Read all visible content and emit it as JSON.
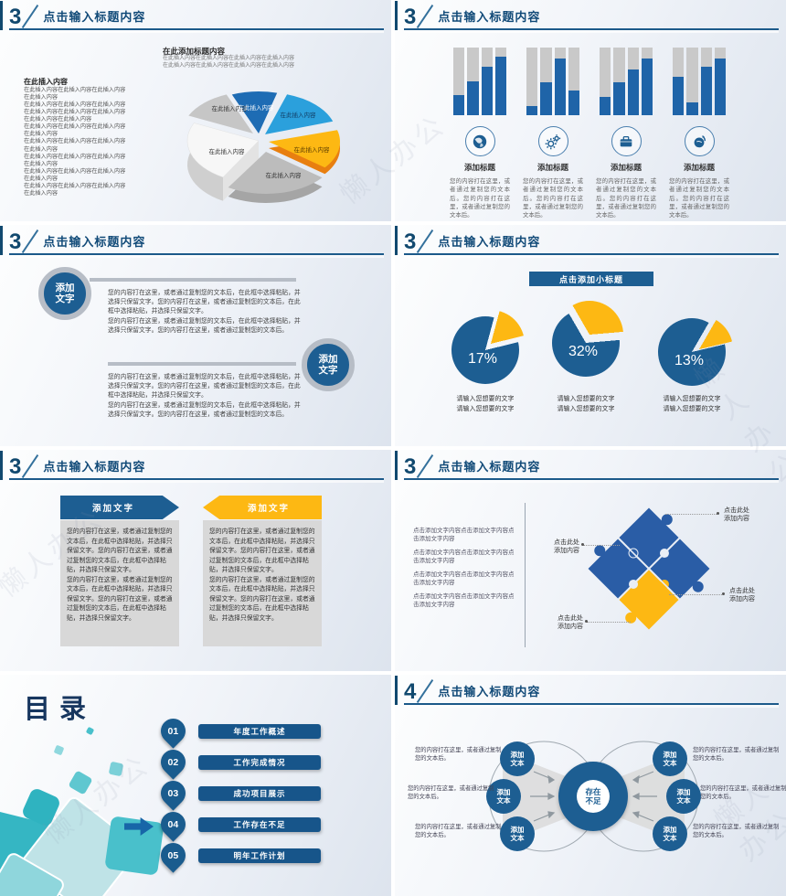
{
  "watermark": "懒人办公",
  "colors": {
    "header_blue": "#114a78",
    "line_blue": "#1c5a8a",
    "accent_blue": "#1d5e92",
    "bar_blue": "#1f64a8",
    "bar_gray": "#c9c9c9",
    "yellow": "#fdb813",
    "orange": "#e87f10",
    "light_blue": "#2ba0dc",
    "teal": "#35b6c3",
    "card_gray": "#d8d8d8"
  },
  "slides": {
    "s1": {
      "number": "3",
      "title": "点击输入标题内容",
      "left_heading": "在此插入内容",
      "left_body": "在此插入内容在此插入内容在此插入内容\n在此插入内容\n在此插入内容在此插入内容在此插入内容\n在此插入内容在此插入内容在此插入内容\n在此插入内容在此插入内容\n在此插入内容在此插入内容在此插入内容\n在此插入内容\n在此插入内容在此插入内容在此插入内容\n在此插入内容\n在此插入内容在此插入内容在此插入内容\n在此插入内容\n在此插入内容在此插入内容在此插入内容\n在此插入内容\n在此插入内容在此插入内容在此插入内容\n在此插入内容",
      "chart_title": "在此添加标题内容",
      "chart_sub": "在此插入内容在此插入内容在此插入内容在此插入内容\n在此插入内容在此插入内容在此插入内容在此插入内容",
      "pie_labels": [
        "在此插入内容",
        "在此插入内容",
        "在此插入内容",
        "在此插入内容",
        "在此插入内容",
        "在此插入内容"
      ]
    },
    "s2": {
      "number": "3",
      "title": "点击输入标题内容",
      "bars": [
        [
          30,
          50,
          72,
          87
        ],
        [
          14,
          48,
          84,
          37
        ],
        [
          27,
          48,
          68,
          84
        ],
        [
          57,
          19,
          72,
          84
        ]
      ],
      "groups": [
        {
          "icon": "globe-icon",
          "heading": "添加标题",
          "body": "您的内容打在这里，或者通过复制您的文本后。您的内容打在这里，或者通过复制您的文本后。"
        },
        {
          "icon": "gears-icon",
          "heading": "添加标题",
          "body": "您的内容打在这里，或者通过复制您的文本后。您的内容打在这里，或者通过复制您的文本后。"
        },
        {
          "icon": "briefcase-icon",
          "heading": "添加标题",
          "body": "您的内容打在这里，或者通过复制您的文本后。您的内容打在这里，或者通过复制您的文本后。"
        },
        {
          "icon": "globe-sync-icon",
          "heading": "添加标题",
          "body": "您的内容打在这里，或者通过复制您的文本后。您的内容打在这里，或者通过复制您的文本后。"
        }
      ]
    },
    "s3": {
      "number": "3",
      "title": "点击输入标题内容",
      "badge": "添加\n文字",
      "para": "您的内容打在这里，或者通过复制您的文本后，在此框中选择粘贴，并选择只保留文字。您的内容打在这里，或者通过复制您的文本后，在此框中选择粘贴，并选择只保留文字。\n您的内容打在这里，或者通过复制您的文本后，在此框中选择粘贴，并选择只保留文字。您的内容打在这里，或者通过复制您的文本后。"
    },
    "s4": {
      "number": "3",
      "title": "点击输入标题内容",
      "banner": "点击添加小标题",
      "pies": [
        {
          "value": 17,
          "pct": "17%"
        },
        {
          "value": 32,
          "pct": "32%"
        },
        {
          "value": 13,
          "pct": "13%"
        }
      ],
      "caption": "请输入您想要的文字\n请输入您想要的文字"
    },
    "s5": {
      "number": "3",
      "title": "点击输入标题内容",
      "cards": [
        {
          "header": "添加文字",
          "body": "您的内容打在这里，或者通过复制您的文本后，在此框中选择粘贴，并选择只保留文字。您的内容打在这里，或者通过复制您的文本后，在此框中选择粘贴，并选择只保留文字。\n您的内容打在这里，或者通过复制您的文本后，在此框中选择粘贴，并选择只保留文字。您的内容打在这里，或者通过复制您的文本后，在此框中选择粘贴，并选择只保留文字。"
        },
        {
          "header": "添加文字",
          "body": "您的内容打在这里，或者通过复制您的文本后，在此框中选择粘贴，并选择只保留文字。您的内容打在这里，或者通过复制您的文本后，在此框中选择粘贴，并选择只保留文字。\n您的内容打在这里，或者通过复制您的文本后，在此框中选择粘贴，并选择只保留文字。您的内容打在这里，或者通过复制您的文本后，在此框中选择粘贴，并选择只保留文字。"
        }
      ]
    },
    "s6": {
      "number": "3",
      "title": "点击输入标题内容",
      "left_paras": [
        "点击添加文字内容点击添加文字内容点击添加文字内容",
        "点击添加文字内容点击添加文字内容点击添加文字内容",
        "点击添加文字内容点击添加文字内容点击添加文字内容",
        "点击添加文字内容点击添加文字内容点击添加文字内容"
      ],
      "callout": "点击此处\n添加内容"
    },
    "s7": {
      "heading": "目录",
      "items": [
        {
          "num": "01",
          "label": "年度工作概述"
        },
        {
          "num": "02",
          "label": "工作完成情况"
        },
        {
          "num": "03",
          "label": "成功项目展示"
        },
        {
          "num": "04",
          "label": "工作存在不足"
        },
        {
          "num": "05",
          "label": "明年工作计划"
        }
      ]
    },
    "s8": {
      "number": "4",
      "title": "点击输入标题内容",
      "center": "存在\n不足",
      "node": "添加\n文本",
      "blurb": "您的内容打在这里，或者通过复制您的文本后。"
    }
  }
}
